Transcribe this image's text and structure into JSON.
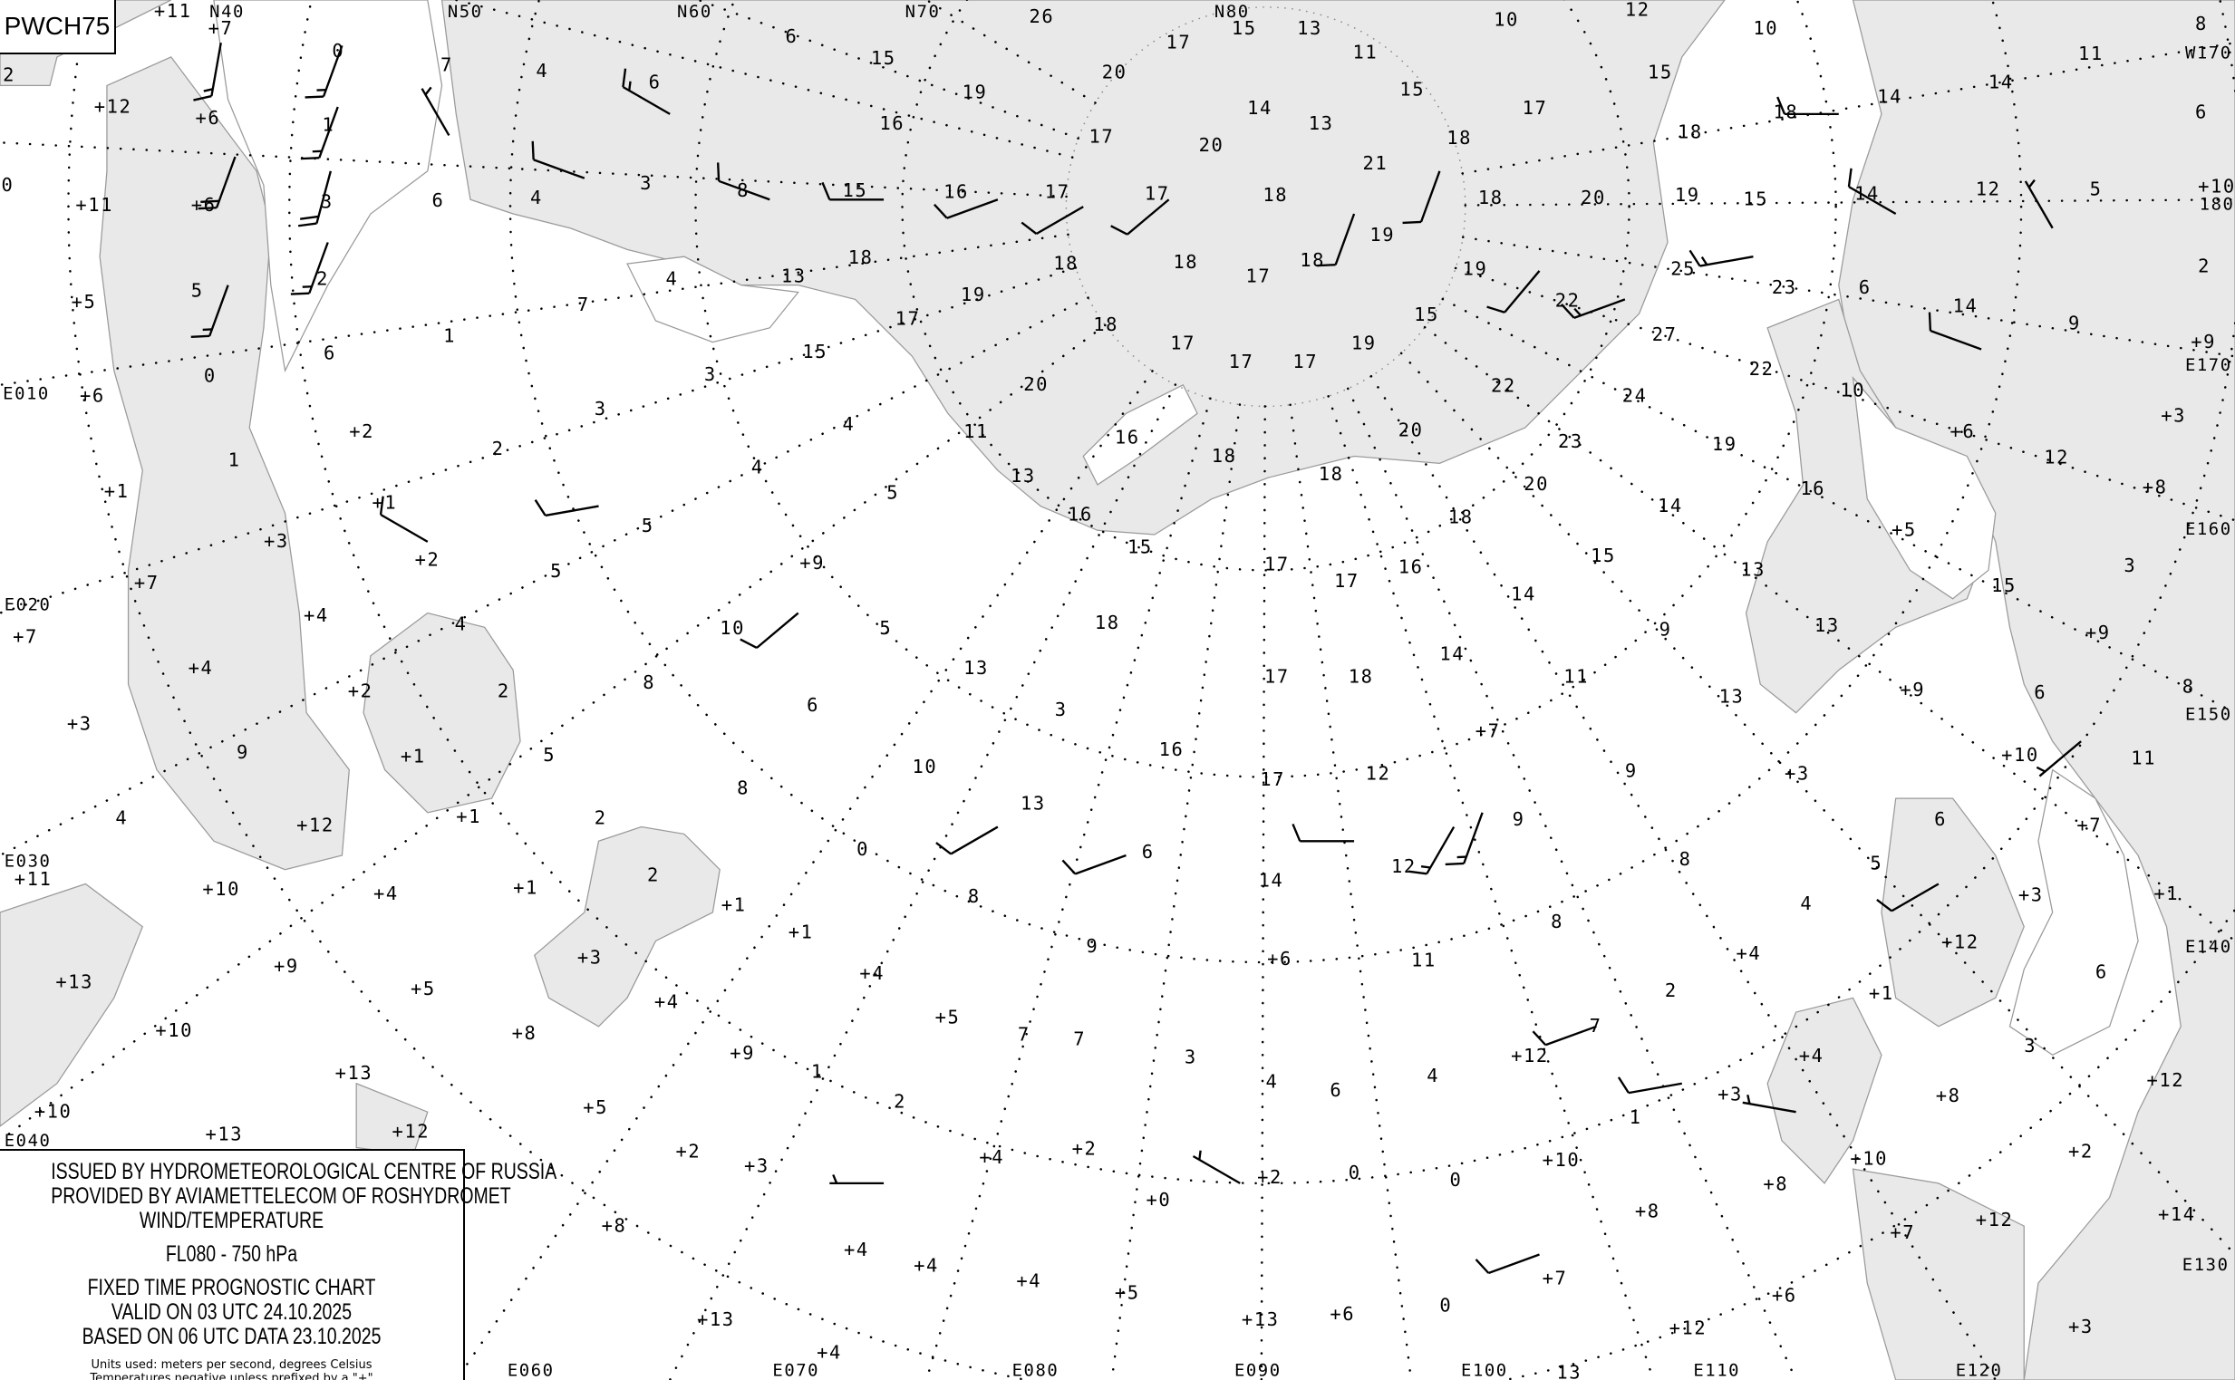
{
  "chart_code": "PWCH75",
  "legend": {
    "issued_by": "ISSUED BY HYDROMETEOROLOGICAL CENTRE OF RUSSIA",
    "provided_by": "PROVIDED BY AVIAMETTELECOM OF ROSHYDROMET",
    "product": "WIND/TEMPERATURE",
    "level": "FL080 - 750 hPa",
    "chart_type": "FIXED TIME PROGNOSTIC CHART",
    "valid": "VALID ON 03 UTC 24.10.2025",
    "based": "BASED ON 06 UTC DATA 23.10.2025",
    "units": "Units used: meters per second, degrees Celsius",
    "sign_note": "Temperatures negative unless prefixed by a \"+\""
  },
  "colors": {
    "sea": "#e9e9e9",
    "land": "#ffffff",
    "coastline": "#9a9a9a",
    "ink": "#000000"
  },
  "graticule_labels": [
    "N40",
    "N50",
    "N60",
    "N70",
    "N80",
    "W170",
    "180",
    "E170",
    "E160",
    "E150",
    "E140",
    "E130",
    "E120",
    "E110",
    "E100",
    "E090",
    "E080",
    "E070",
    "E060",
    "E010",
    "E020",
    "E030",
    "E040"
  ],
  "temperature_labels": [
    "+11",
    "+7",
    "0",
    "7",
    "4",
    "6",
    "6",
    "26",
    "17",
    "15",
    "13",
    "11",
    "10",
    "12",
    "10",
    "11",
    "8",
    "2",
    "+12",
    "+6",
    "1",
    "20",
    "19",
    "15",
    "14",
    "13",
    "15",
    "17",
    "15",
    "18",
    "14",
    "14",
    "6",
    "0",
    "+11",
    "+6",
    "3",
    "6",
    "4",
    "3",
    "8",
    "15",
    "16",
    "17",
    "17",
    "18",
    "16",
    "21",
    "17",
    "20",
    "18",
    "18",
    "18",
    "20",
    "19",
    "15",
    "14",
    "12",
    "5",
    "+10",
    "+5",
    "5",
    "2",
    "4",
    "13",
    "18",
    "18",
    "18",
    "17",
    "18",
    "19",
    "19",
    "22",
    "25",
    "23",
    "6",
    "2",
    "6",
    "1",
    "7",
    "17",
    "19",
    "18",
    "17",
    "17",
    "17",
    "19",
    "15",
    "14",
    "9",
    "+9",
    "+6",
    "0",
    "3",
    "15",
    "20",
    "22",
    "27",
    "22",
    "24",
    "10",
    "+3",
    "3",
    "4",
    "11",
    "16",
    "20",
    "23",
    "19",
    "+6",
    "1",
    "+2",
    "2",
    "4",
    "5",
    "13",
    "18",
    "18",
    "20",
    "16",
    "12",
    "+8",
    "+1",
    "+1",
    "5",
    "16",
    "18",
    "14",
    "+5",
    "+3",
    "+2",
    "5",
    "15",
    "17",
    "17",
    "16",
    "15",
    "13",
    "15",
    "3",
    "+9",
    "+7",
    "+4",
    "4",
    "10",
    "5",
    "18",
    "14",
    "9",
    "13",
    "+9",
    "+7",
    "+4",
    "+2",
    "2",
    "8",
    "13",
    "17",
    "18",
    "14",
    "11",
    "13",
    "6",
    "8",
    "+9",
    "+3",
    "+1",
    "5",
    "3",
    "16",
    "+7",
    "9",
    "6",
    "11",
    "+10",
    "4",
    "8",
    "10",
    "17",
    "12",
    "9",
    "+3",
    "+1",
    "2",
    "13",
    "9",
    "6",
    "+7",
    "+12",
    "+11",
    "+10",
    "+4",
    "+1",
    "2",
    "0",
    "6",
    "14",
    "12",
    "8",
    "5",
    "+3",
    "+1",
    "+1",
    "8",
    "4",
    "+12",
    "+13",
    "+9",
    "+5",
    "+3",
    "+1",
    "9",
    "11",
    "8",
    "+4",
    "6",
    "+6",
    "+4",
    "+4",
    "+5",
    "7",
    "2",
    "+1",
    "7",
    "7",
    "+12",
    "+10",
    "+8",
    "+9",
    "1",
    "3",
    "4",
    "6",
    "4",
    "+4",
    "3",
    "+3",
    "+8",
    "+12",
    "+13",
    "+10",
    "+5",
    "2",
    "1",
    "+10",
    "+2",
    "+10",
    "+13",
    "+12",
    "+2",
    "+4",
    "+2",
    "+2",
    "0",
    "0",
    "+8",
    "+3",
    "+0",
    "+8",
    "+12",
    "+14",
    "+8",
    "+4",
    "+4",
    "+4",
    "+5",
    "+6",
    "0",
    "+7",
    "+7",
    "+6",
    "+13",
    "+13",
    "+4",
    "+12",
    "+3",
    "13"
  ],
  "wind_barbs": [
    {
      "dir_deg": 200,
      "speed_ms": 15
    },
    {
      "dir_deg": 200,
      "speed_ms": 15
    },
    {
      "dir_deg": 195,
      "speed_ms": 20
    },
    {
      "dir_deg": 200,
      "speed_ms": 15
    },
    {
      "dir_deg": 190,
      "speed_ms": 15
    },
    {
      "dir_deg": 200,
      "speed_ms": 20
    },
    {
      "dir_deg": 200,
      "speed_ms": 15
    },
    {
      "dir_deg": 330,
      "speed_ms": 5
    },
    {
      "dir_deg": 290,
      "speed_ms": 10
    },
    {
      "dir_deg": 300,
      "speed_ms": 15
    },
    {
      "dir_deg": 290,
      "speed_ms": 10
    },
    {
      "dir_deg": 270,
      "speed_ms": 10
    },
    {
      "dir_deg": 250,
      "speed_ms": 10
    },
    {
      "dir_deg": 240,
      "speed_ms": 10
    },
    {
      "dir_deg": 230,
      "speed_ms": 10
    },
    {
      "dir_deg": 200,
      "speed_ms": 10
    },
    {
      "dir_deg": 200,
      "speed_ms": 10
    },
    {
      "dir_deg": 220,
      "speed_ms": 10
    },
    {
      "dir_deg": 250,
      "speed_ms": 15
    },
    {
      "dir_deg": 260,
      "speed_ms": 15
    },
    {
      "dir_deg": 270,
      "speed_ms": 10
    },
    {
      "dir_deg": 300,
      "speed_ms": 10
    },
    {
      "dir_deg": 290,
      "speed_ms": 10
    },
    {
      "dir_deg": 330,
      "speed_ms": 5
    },
    {
      "dir_deg": 300,
      "speed_ms": 10
    },
    {
      "dir_deg": 260,
      "speed_ms": 10
    },
    {
      "dir_deg": 230,
      "speed_ms": 10
    },
    {
      "dir_deg": 240,
      "speed_ms": 10
    },
    {
      "dir_deg": 250,
      "speed_ms": 10
    },
    {
      "dir_deg": 270,
      "speed_ms": 10
    },
    {
      "dir_deg": 210,
      "speed_ms": 15
    },
    {
      "dir_deg": 200,
      "speed_ms": 15
    },
    {
      "dir_deg": 250,
      "speed_ms": 10
    },
    {
      "dir_deg": 260,
      "speed_ms": 10
    },
    {
      "dir_deg": 240,
      "speed_ms": 10
    },
    {
      "dir_deg": 230,
      "speed_ms": 5
    },
    {
      "dir_deg": 270,
      "speed_ms": 5
    },
    {
      "dir_deg": 300,
      "speed_ms": 5
    },
    {
      "dir_deg": 250,
      "speed_ms": 10
    },
    {
      "dir_deg": 280,
      "speed_ms": 5
    }
  ]
}
